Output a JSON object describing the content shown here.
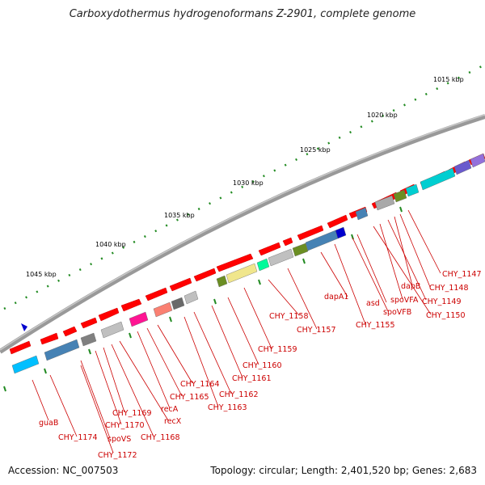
{
  "title": "Carboxydothermus hydrogenoformans Z-2901, complete genome",
  "footer": {
    "accession": "Accession: NC_007503",
    "summary": "Topology: circular; Length: 2,401,520 bp; Genes: 2,683"
  },
  "ruler": {
    "labels": [
      "1015 kbp",
      "1020 kbp",
      "1025 kbp",
      "1030 kbp",
      "1035 kbp",
      "1040 kbp",
      "1045 kbp"
    ]
  },
  "colors": {
    "forward": "#ff0000",
    "backbone": "#808080",
    "tick": "#228b22",
    "label": "#cc0000"
  },
  "gene_labels": [
    "CHY_1147",
    "CHY_1148",
    "dapB",
    "CHY_1149",
    "spoVFA",
    "CHY_1150",
    "asd",
    "spoVFB",
    "dapA1",
    "CHY_1155",
    "CHY_1158",
    "CHY_1157",
    "CHY_1159",
    "CHY_1160",
    "CHY_1161",
    "CHY_1164",
    "CHY_1162",
    "CHY_1165",
    "CHY_1163",
    "recA",
    "recX",
    "CHY_1169",
    "CHY_1170",
    "CHY_1168",
    "spoVS",
    "guaB",
    "CHY_1174",
    "CHY_1172"
  ]
}
